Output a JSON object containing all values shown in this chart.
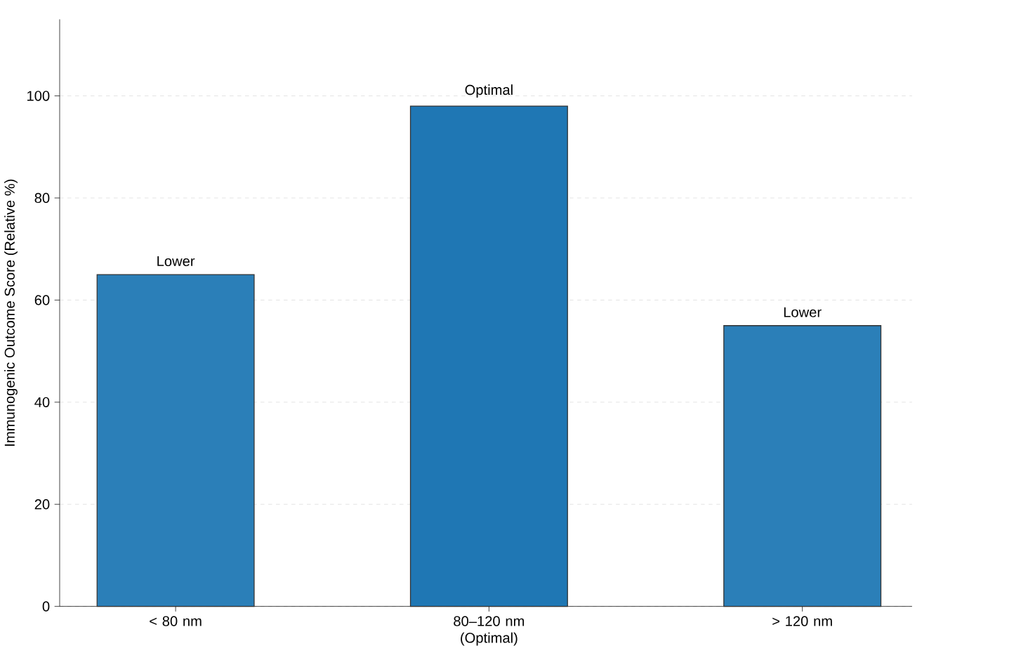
{
  "chart_data": {
    "type": "bar",
    "ylabel": "Immunogenic Outcome Score (Relative %)",
    "categories": [
      "< 80 nm",
      "80–120 nm (Optimal)",
      "> 120 nm"
    ],
    "values": [
      65,
      98,
      55
    ],
    "colors": [
      "#2b7fb8",
      "#1f77b4",
      "#2b7fb8"
    ],
    "value_labels": [
      "Lower",
      "Optimal",
      "Lower"
    ],
    "ylim": [
      0,
      115
    ],
    "yticks": [
      0,
      20,
      40,
      60,
      80,
      100
    ],
    "grid": "y"
  }
}
